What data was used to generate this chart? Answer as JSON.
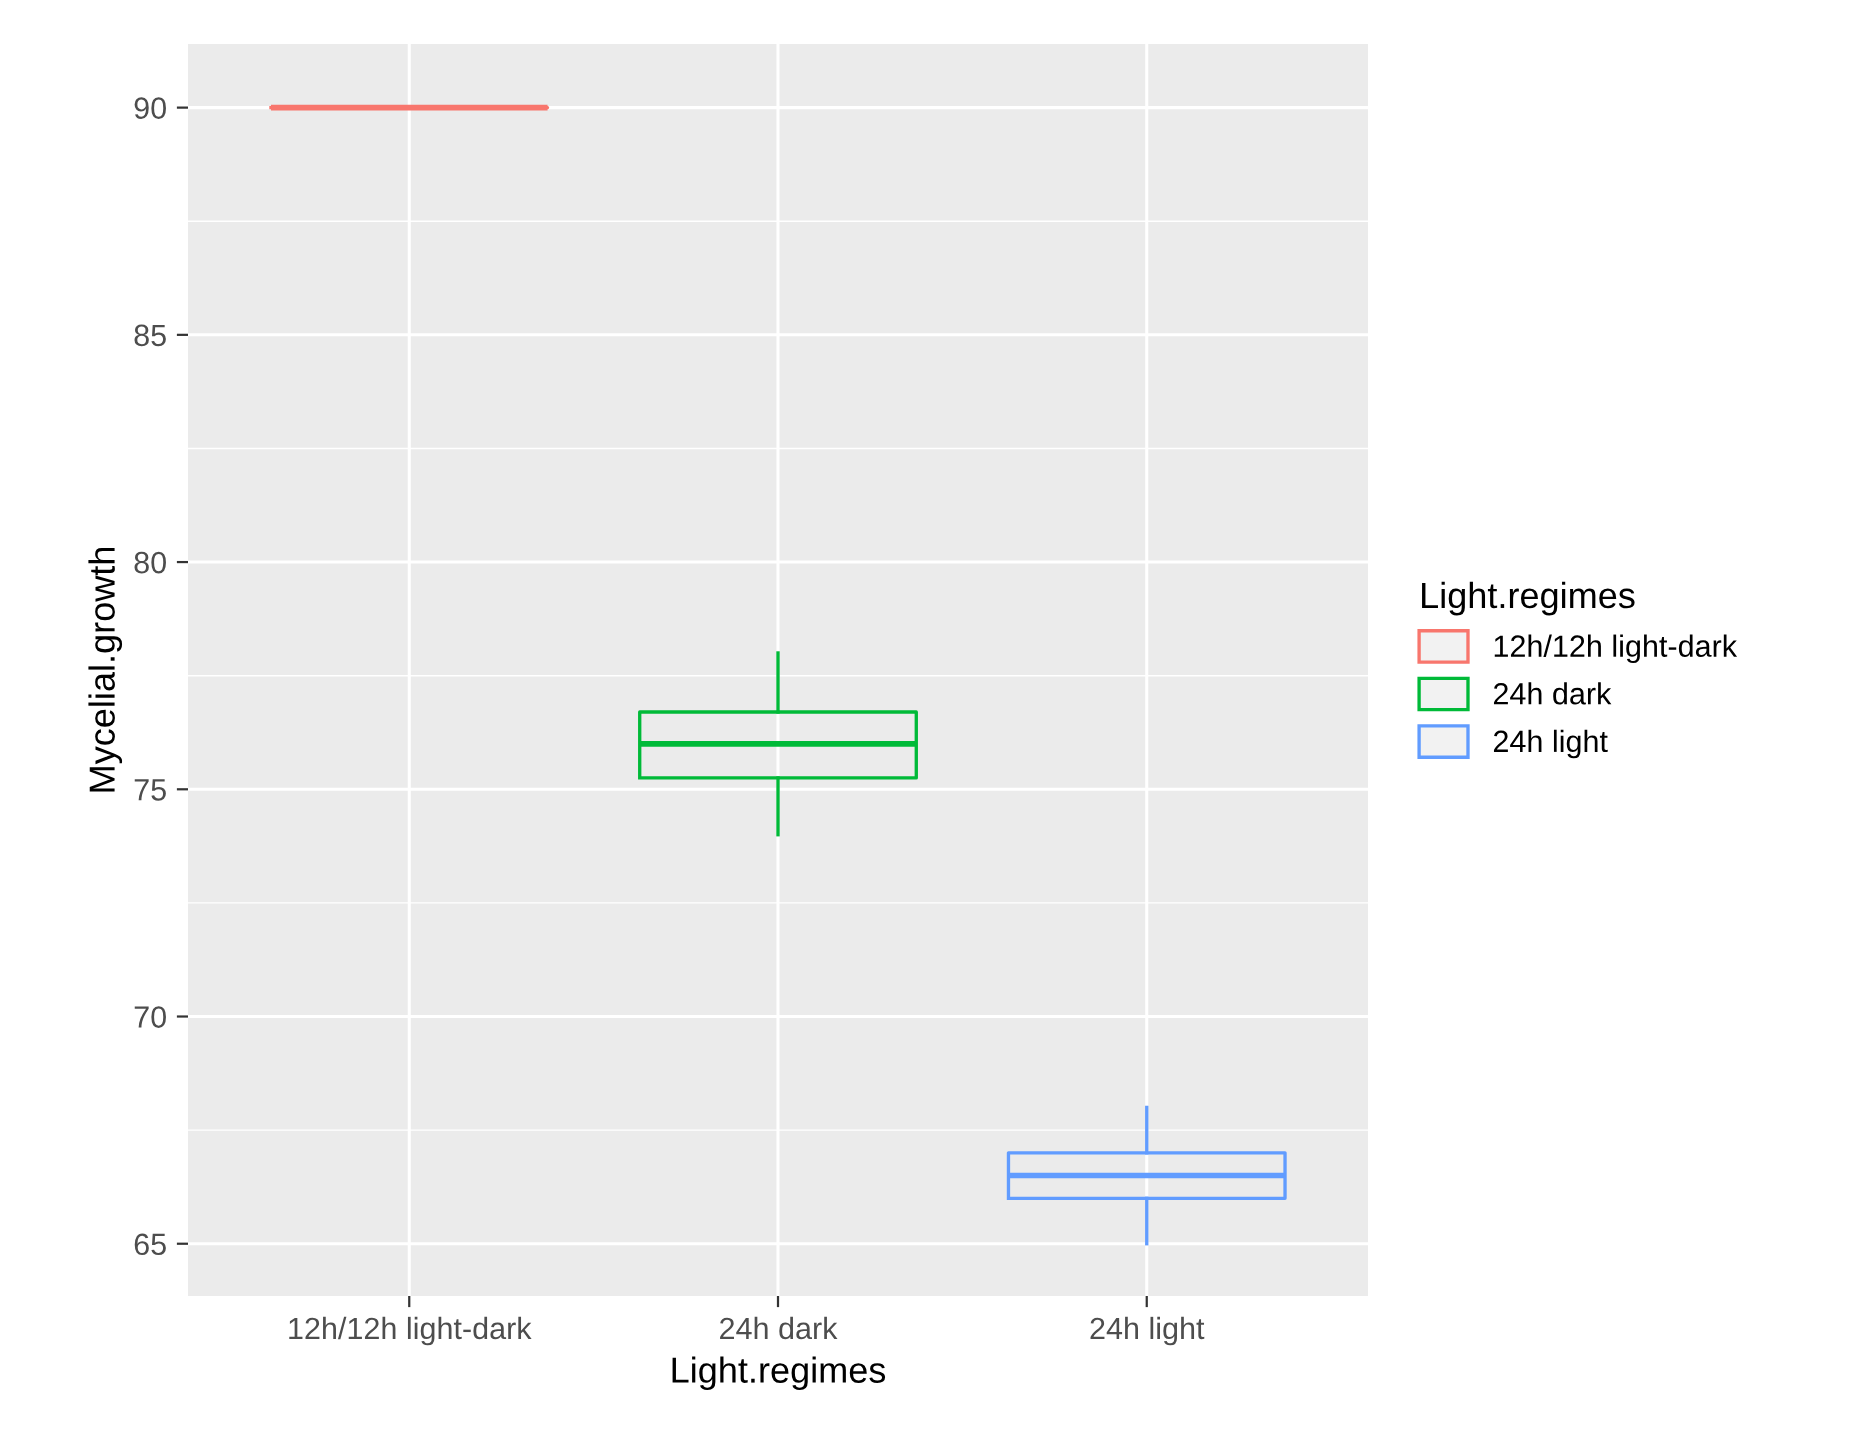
{
  "chart_data": {
    "type": "box",
    "xlabel": "Light.regimes",
    "ylabel": "Mycelial.growth",
    "legend_title": "Light.regimes",
    "categories": [
      "12h/12h light-dark",
      "24h dark",
      "24h light"
    ],
    "series": [
      {
        "name": "12h/12h light-dark",
        "color": "#f8766d",
        "boxes": [
          {
            "low": 90,
            "q1": 90,
            "median": 90,
            "q3": 90,
            "high": 90
          },
          null,
          null
        ]
      },
      {
        "name": "24h dark",
        "color": "#00ba38",
        "boxes": [
          null,
          {
            "low": 74,
            "q1": 75.25,
            "median": 76,
            "q3": 76.7,
            "high": 78
          },
          null
        ]
      },
      {
        "name": "24h light",
        "color": "#619cff",
        "boxes": [
          null,
          null,
          {
            "low": 65,
            "q1": 66,
            "median": 66.5,
            "q3": 67,
            "high": 68
          }
        ]
      }
    ],
    "ylim": [
      63.85,
      91.4
    ],
    "yticks": [
      65,
      70,
      75,
      80,
      85,
      90
    ],
    "grid": true,
    "legend": "right"
  }
}
